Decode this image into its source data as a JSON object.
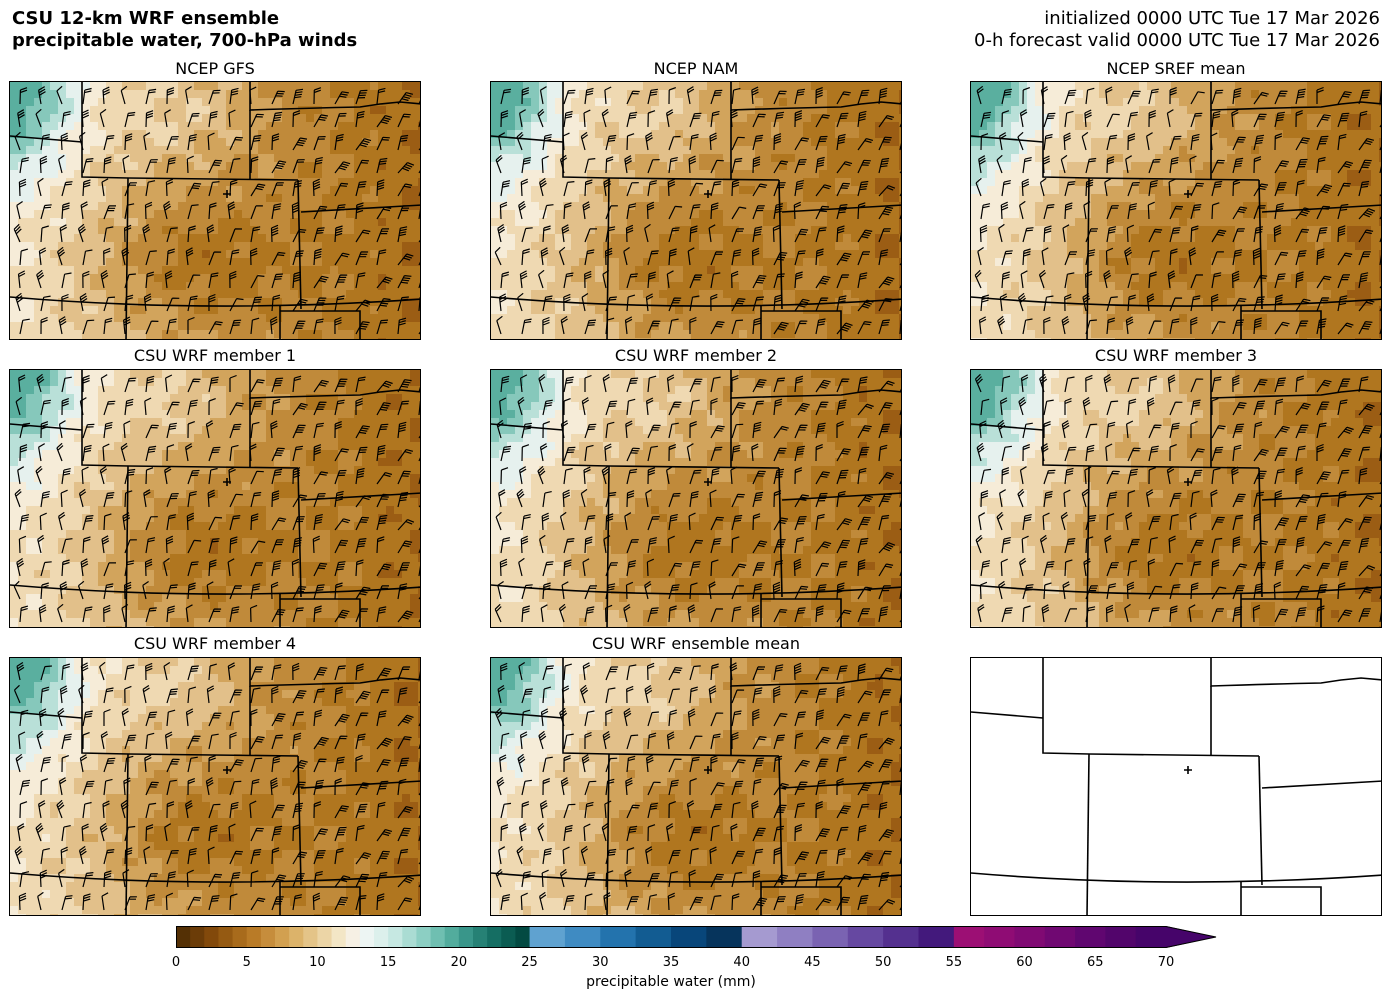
{
  "header": {
    "title_line1": "CSU 12-km WRF ensemble",
    "title_line2": "precipitable water, 700-hPa winds",
    "init_line": "initialized 0000 UTC Tue 17 Mar 2026",
    "valid_line": "0-h forecast valid 0000 UTC Tue 17 Mar 2026"
  },
  "panels": [
    {
      "title": "NCEP GFS"
    },
    {
      "title": "NCEP NAM"
    },
    {
      "title": "NCEP SREF mean"
    },
    {
      "title": "CSU WRF member 1"
    },
    {
      "title": "CSU WRF member 2"
    },
    {
      "title": "CSU WRF member 3"
    },
    {
      "title": "CSU WRF member 4"
    },
    {
      "title": "CSU WRF ensemble mean"
    },
    {
      "title": ""
    }
  ],
  "colorbar": {
    "label": "precipitable water (mm)",
    "ticks": [
      "0",
      "5",
      "10",
      "15",
      "20",
      "25",
      "30",
      "35",
      "40",
      "45",
      "50",
      "55",
      "60",
      "65",
      "70"
    ],
    "range": [
      0,
      72
    ]
  }
}
